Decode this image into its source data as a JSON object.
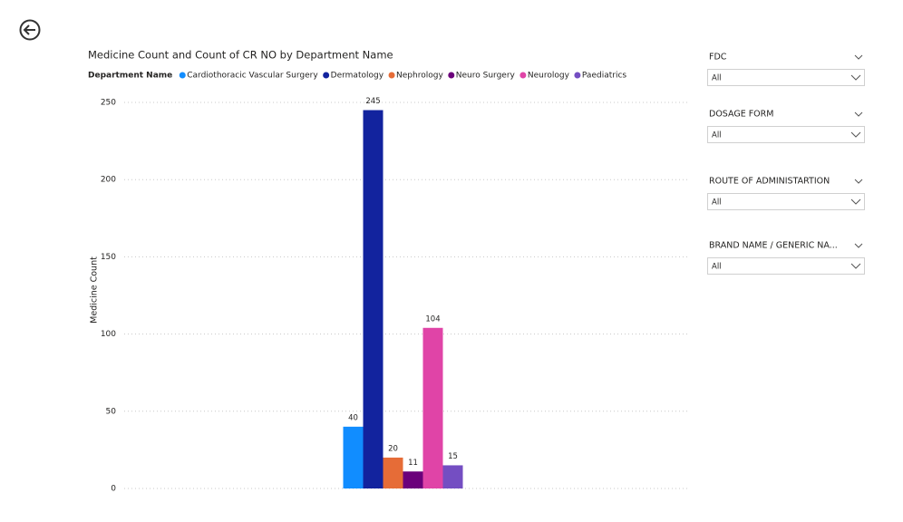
{
  "chart_data": {
    "type": "bar",
    "title": "Medicine Count and Count of CR NO by Department Name",
    "legend_title": "Department Name",
    "y_label": "Medicine Count",
    "categories": [
      null
    ],
    "series": [
      {
        "name": "Cardiothoracic Vascular Surgery",
        "color": "#118DFF",
        "values": [
          40
        ]
      },
      {
        "name": "Dermatology",
        "color": "#12239E",
        "values": [
          245
        ]
      },
      {
        "name": "Nephrology",
        "color": "#E66C37",
        "values": [
          20
        ]
      },
      {
        "name": "Neuro Surgery",
        "color": "#6B007B",
        "values": [
          11
        ]
      },
      {
        "name": "Neurology",
        "color": "#E044A7",
        "values": [
          104
        ]
      },
      {
        "name": "Paediatrics",
        "color": "#744EC2",
        "values": [
          15
        ]
      }
    ],
    "ylim": [
      0,
      250
    ],
    "yticks": [
      0,
      50,
      100,
      150,
      200,
      250
    ],
    "grid": true
  },
  "slicers": [
    {
      "title": "FDC",
      "value": "All"
    },
    {
      "title": "DOSAGE FORM",
      "value": "All"
    },
    {
      "title": "ROUTE OF ADMINISTARTION",
      "value": "All"
    },
    {
      "title": "BRAND NAME / GENERIC NA...",
      "value": "All"
    }
  ]
}
